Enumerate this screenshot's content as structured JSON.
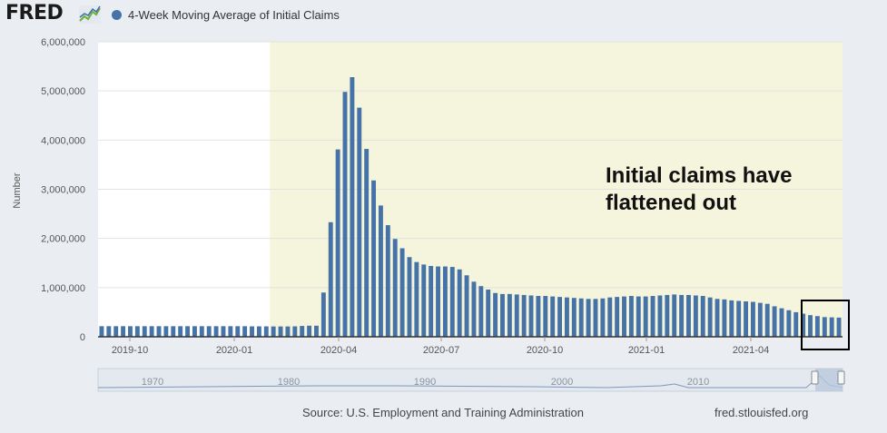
{
  "header": {
    "logo_text": "FRED",
    "logo_icon": "line-chart-icon",
    "legend_label": "4-Week Moving Average of Initial Claims",
    "series_color": "#4572a7"
  },
  "footer": {
    "source": "Source: U.S. Employment and Training Administration",
    "site": "fred.stlouisfed.org"
  },
  "chart_data": {
    "type": "bar",
    "title": "",
    "xlabel": "",
    "ylabel": "Number",
    "ylim": [
      0,
      6000000
    ],
    "yticks": [
      0,
      1000000,
      2000000,
      3000000,
      4000000,
      5000000,
      6000000
    ],
    "ytick_labels": [
      "0",
      "1,000,000",
      "2,000,000",
      "3,000,000",
      "4,000,000",
      "5,000,000",
      "6,000,000"
    ],
    "xtick_labels": [
      "2019-10",
      "2020-01",
      "2020-04",
      "2020-07",
      "2020-10",
      "2021-01",
      "2021-04"
    ],
    "grid": true,
    "recession_shading": {
      "start_bar": 24,
      "color": "#f5f4dc"
    },
    "annotation": "Initial claims have flattened out",
    "highlight_box_color": "#000000",
    "navigator": {
      "labels": [
        "1970",
        "1980",
        "1990",
        "2000",
        "2010"
      ]
    },
    "series": [
      {
        "name": "4-Week Moving Average of Initial Claims",
        "color": "#4572a7",
        "values": [
          215000,
          215000,
          215000,
          215000,
          215000,
          215000,
          215000,
          215000,
          215000,
          215000,
          215000,
          215000,
          215000,
          215000,
          215000,
          215000,
          215000,
          215000,
          215000,
          215000,
          215000,
          212000,
          212000,
          212000,
          210000,
          210000,
          210000,
          212000,
          220000,
          225000,
          225000,
          900000,
          2330000,
          3810000,
          4980000,
          5280000,
          4660000,
          3820000,
          3180000,
          2670000,
          2270000,
          1990000,
          1800000,
          1620000,
          1520000,
          1470000,
          1440000,
          1430000,
          1430000,
          1420000,
          1370000,
          1250000,
          1120000,
          1030000,
          960000,
          890000,
          870000,
          870000,
          860000,
          850000,
          840000,
          830000,
          830000,
          820000,
          810000,
          800000,
          790000,
          780000,
          770000,
          770000,
          780000,
          800000,
          810000,
          820000,
          830000,
          820000,
          820000,
          830000,
          840000,
          850000,
          860000,
          850000,
          850000,
          840000,
          830000,
          800000,
          770000,
          760000,
          740000,
          730000,
          720000,
          710000,
          690000,
          670000,
          620000,
          580000,
          540000,
          500000,
          470000,
          440000,
          420000,
          400000,
          395000,
          390000
        ]
      }
    ]
  }
}
